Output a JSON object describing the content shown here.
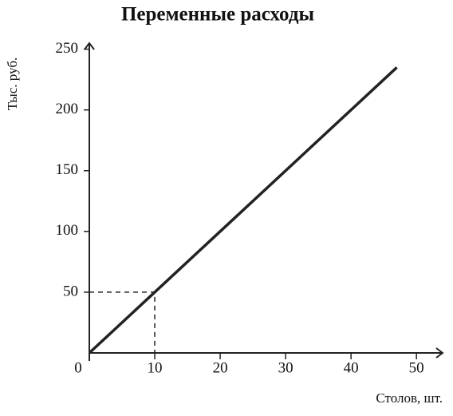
{
  "chart_data": {
    "type": "line",
    "title": "Переменные расходы",
    "x_label": "Столов, шт.",
    "y_label": "Тыс. руб.",
    "x": [
      0,
      10,
      47
    ],
    "values": [
      0,
      50,
      235
    ],
    "color": "#222",
    "xlim": [
      0,
      54
    ],
    "ylim": [
      0,
      255
    ],
    "xticks": [
      0,
      10,
      20,
      30,
      40,
      50
    ],
    "yticks": [
      50,
      100,
      150,
      200,
      250
    ]
  }
}
